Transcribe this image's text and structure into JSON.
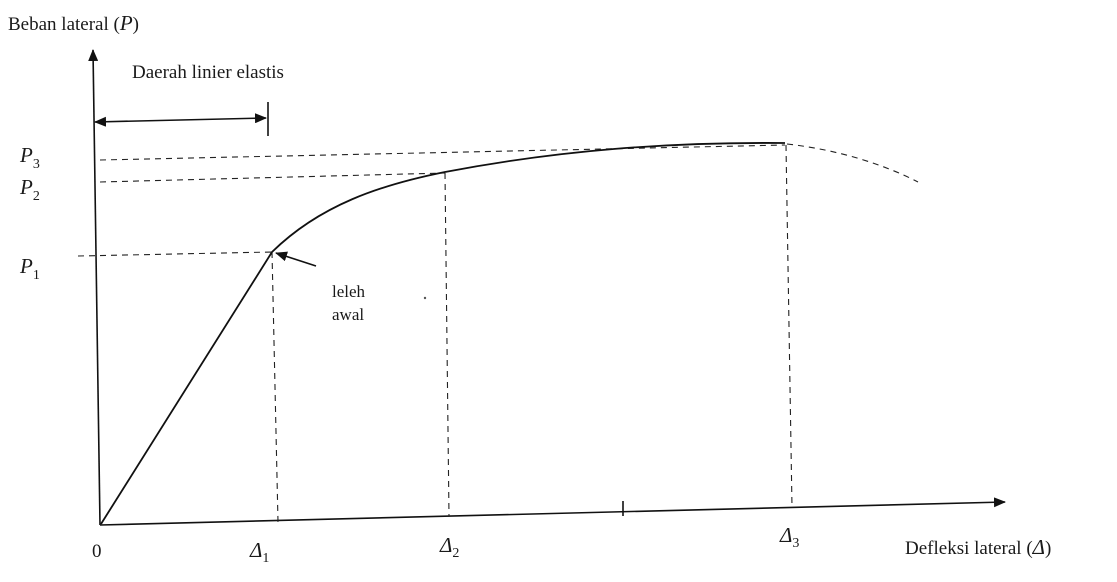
{
  "y_axis_label": {
    "text": "Beban lateral (",
    "symbol": "P",
    "close": ")"
  },
  "x_axis_label": {
    "text": "Defleksi lateral (",
    "symbol": "Δ",
    "close": ")"
  },
  "origin_label": "0",
  "region_label": "Daerah linier elastis",
  "yield_annotation": {
    "line1": "leleh",
    "line2": "awal"
  },
  "load_levels": [
    {
      "symbol": "P",
      "subscript": "1"
    },
    {
      "symbol": "P",
      "subscript": "2"
    },
    {
      "symbol": "P",
      "subscript": "3"
    }
  ],
  "deflection_levels": [
    {
      "symbol": "Δ",
      "subscript": "1"
    },
    {
      "symbol": "Δ",
      "subscript": "2"
    },
    {
      "symbol": "Δ",
      "subscript": "3"
    }
  ]
}
